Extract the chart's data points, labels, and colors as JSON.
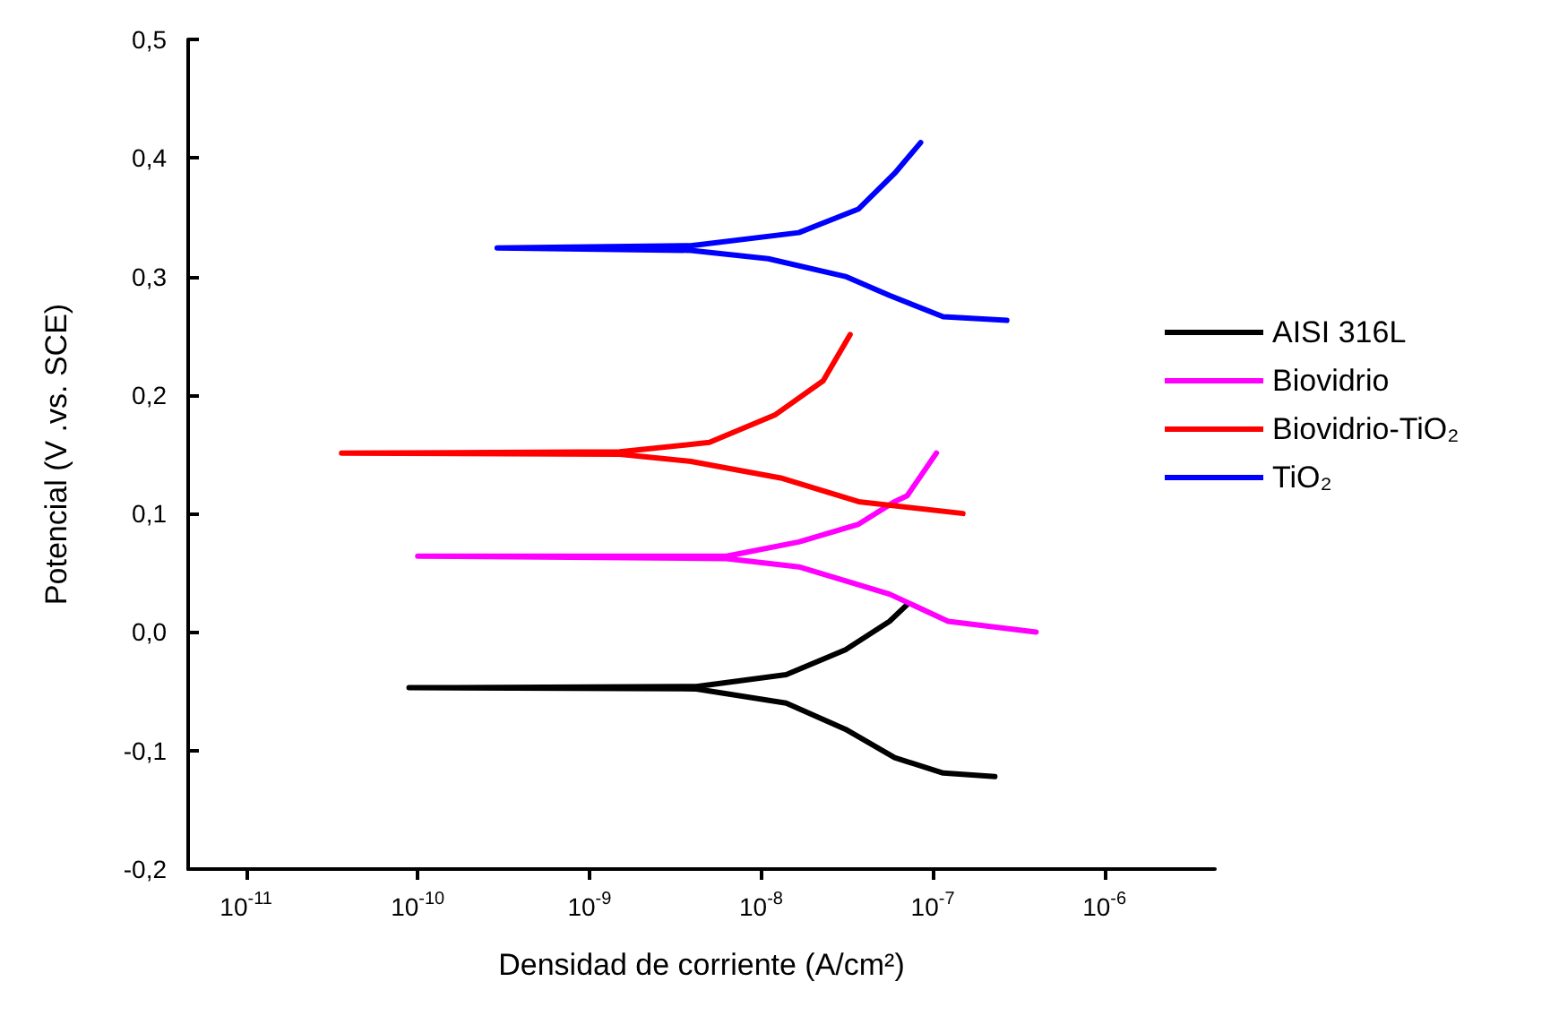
{
  "chart_data": {
    "type": "line",
    "xlabel": "Densidad de corriente (A/cm²)",
    "ylabel": "Potencial (V .vs. SCE)",
    "log": "x",
    "xlim": [
      4.6e-12,
      4.4e-06
    ],
    "xticks": [
      {
        "value": 1e-11,
        "label": "10$^{-11}$"
      },
      {
        "value": 1e-10,
        "label": "10$^{-10}$"
      },
      {
        "value": 1e-09,
        "label": "10$^{-9}$"
      },
      {
        "value": 1e-08,
        "label": "10$^{-8}$"
      },
      {
        "value": 1e-07,
        "label": "10$^{-7}$"
      },
      {
        "value": 1e-06,
        "label": "10$^{-6}$"
      }
    ],
    "ylim": [
      -0.2,
      0.5
    ],
    "yticks": [
      {
        "value": -0.2,
        "label": "-0,2"
      },
      {
        "value": -0.1,
        "label": "-0,1"
      },
      {
        "value": 0,
        "label": "0,0"
      },
      {
        "value": 0.1,
        "label": "0,1"
      },
      {
        "value": 0.2,
        "label": "0,2"
      },
      {
        "value": 0.3,
        "label": "0,3"
      },
      {
        "value": 0.4,
        "label": "0,4"
      },
      {
        "value": 0.5,
        "label": "0,5"
      }
    ],
    "grid": false,
    "legend": "right",
    "marker": "none",
    "line_style": "solid",
    "series": [
      {
        "name": "AISI 316L",
        "color": "#000000",
        "x": [
          2.3e-07,
          1.15e-07,
          6e-08,
          3.1e-08,
          1.4e-08,
          4.2e-09,
          8.9e-11,
          4.2e-09,
          1.4e-08,
          3.1e-08,
          5.6e-08,
          7.2e-08
        ],
        "values": [
          -0.122,
          -0.119,
          -0.106,
          -0.082,
          -0.06,
          -0.048,
          -0.047,
          -0.046,
          -0.036,
          -0.015,
          0.009,
          0.024
        ]
      },
      {
        "name": "Biovidrio",
        "color": "#ff00ff",
        "x": [
          4e-07,
          1.23e-07,
          5.6e-08,
          1.66e-08,
          6.3e-09,
          1e-10,
          6.3e-09,
          1.66e-08,
          3.7e-08,
          6e-08,
          7.1e-08,
          1.05e-07
        ],
        "values": [
          0.0,
          0.009,
          0.032,
          0.055,
          0.062,
          0.064,
          0.064,
          0.076,
          0.091,
          0.11,
          0.115,
          0.151
        ]
      },
      {
        "name": "Biovidrio-TiO₂",
        "color": "#ff0000",
        "x": [
          1.5e-07,
          3.7e-08,
          1.3e-08,
          3.9e-09,
          1.5e-09,
          3.6e-11,
          1.5e-09,
          5e-09,
          1.2e-08,
          2.3e-08,
          3.3e-08
        ],
        "values": [
          0.1,
          0.11,
          0.13,
          0.144,
          0.15,
          0.151,
          0.152,
          0.16,
          0.183,
          0.212,
          0.251
        ]
      },
      {
        "name": "TiO₂",
        "color": "#0000ff",
        "x": [
          2.7e-07,
          1.15e-07,
          5.6e-08,
          3.1e-08,
          1.1e-08,
          3.9e-09,
          2.9e-10,
          3.9e-09,
          1.66e-08,
          3.7e-08,
          6e-08,
          8.5e-08
        ],
        "values": [
          0.263,
          0.266,
          0.284,
          0.3,
          0.315,
          0.322,
          0.324,
          0.326,
          0.337,
          0.357,
          0.387,
          0.413
        ]
      }
    ]
  }
}
